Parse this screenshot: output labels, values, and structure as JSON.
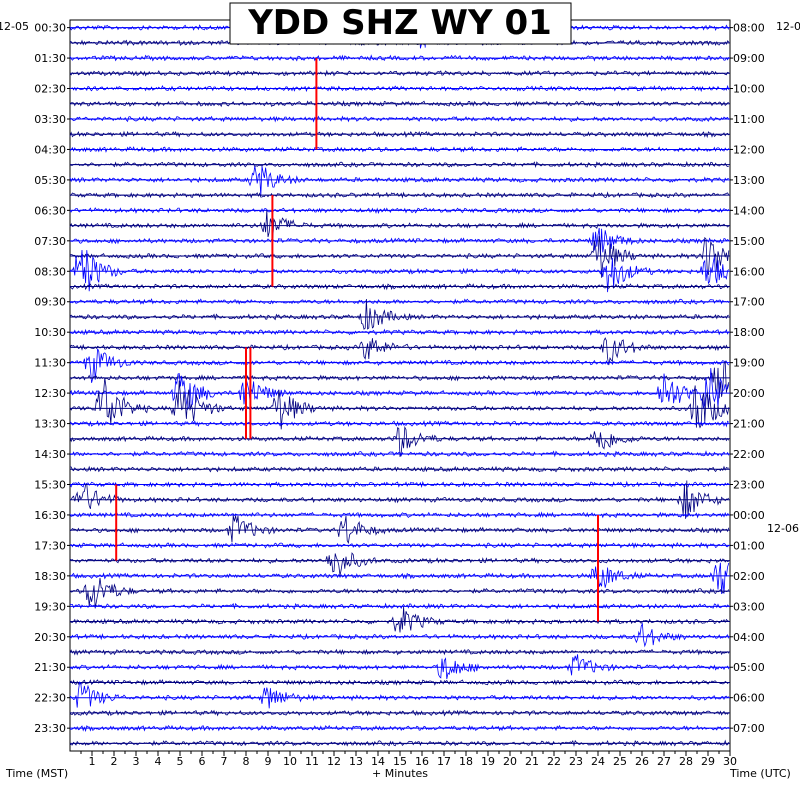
{
  "chart_data": {
    "type": "line",
    "title": "YDD SHZ WY 01",
    "xlabel": "+ Minutes",
    "ylabel_left": "Time (MST)",
    "ylabel_right": "Time (UTC)",
    "date_left": "12-05",
    "date_right_top": "12-0",
    "date_right_mid": "12-06",
    "x_range": [
      0,
      30
    ],
    "x_ticks": [
      "1",
      "2",
      "3",
      "4",
      "5",
      "6",
      "7",
      "8",
      "9",
      "10",
      "11",
      "12",
      "13",
      "14",
      "15",
      "16",
      "17",
      "18",
      "19",
      "20",
      "21",
      "22",
      "23",
      "24",
      "25",
      "26",
      "27",
      "28",
      "29",
      "30"
    ],
    "left_ticks": [
      "00:30",
      "01:30",
      "02:30",
      "03:30",
      "04:30",
      "05:30",
      "06:30",
      "07:30",
      "08:30",
      "09:30",
      "10:30",
      "11:30",
      "12:30",
      "13:30",
      "14:30",
      "15:30",
      "16:30",
      "17:30",
      "18:30",
      "19:30",
      "20:30",
      "21:30",
      "22:30",
      "23:30"
    ],
    "right_ticks": [
      "08:00",
      "09:00",
      "10:00",
      "11:00",
      "12:00",
      "13:00",
      "14:00",
      "15:00",
      "16:00",
      "17:00",
      "18:00",
      "19:00",
      "20:00",
      "21:00",
      "22:00",
      "23:00",
      "00:00",
      "01:00",
      "02:00",
      "03:00",
      "04:00",
      "05:00",
      "06:00",
      "07:00"
    ],
    "trace_count": 48,
    "trace_colors": [
      "#0000ff",
      "#000080"
    ],
    "event_color": "#ff0000",
    "grid": true,
    "events": [
      {
        "trace": 0,
        "minute": 16.0,
        "amp": 1.4
      },
      {
        "trace": 10,
        "minute": 8.5,
        "amp": 1.2
      },
      {
        "trace": 13,
        "minute": 9.0,
        "amp": 1.0
      },
      {
        "trace": 14,
        "minute": 24.0,
        "amp": 1.0
      },
      {
        "trace": 15,
        "minute": 24.0,
        "amp": 1.6
      },
      {
        "trace": 15,
        "minute": 29.0,
        "amp": 1.6
      },
      {
        "trace": 16,
        "minute": 0.5,
        "amp": 2.0
      },
      {
        "trace": 16,
        "minute": 24.5,
        "amp": 1.4
      },
      {
        "trace": 16,
        "minute": 29.0,
        "amp": 1.2
      },
      {
        "trace": 19,
        "minute": 13.5,
        "amp": 1.0
      },
      {
        "trace": 21,
        "minute": 13.5,
        "amp": 0.8
      },
      {
        "trace": 21,
        "minute": 24.5,
        "amp": 1.0
      },
      {
        "trace": 22,
        "minute": 1.0,
        "amp": 1.2
      },
      {
        "trace": 23,
        "minute": 29.5,
        "amp": 1.4
      },
      {
        "trace": 24,
        "minute": 5.0,
        "amp": 1.6
      },
      {
        "trace": 24,
        "minute": 8.0,
        "amp": 1.2
      },
      {
        "trace": 24,
        "minute": 27.0,
        "amp": 1.4
      },
      {
        "trace": 24,
        "minute": 29.0,
        "amp": 1.8
      },
      {
        "trace": 25,
        "minute": 1.5,
        "amp": 2.2
      },
      {
        "trace": 25,
        "minute": 5.0,
        "amp": 2.0
      },
      {
        "trace": 25,
        "minute": 9.5,
        "amp": 1.4
      },
      {
        "trace": 25,
        "minute": 28.5,
        "amp": 2.0
      },
      {
        "trace": 27,
        "minute": 15.0,
        "amp": 1.0
      },
      {
        "trace": 27,
        "minute": 24.0,
        "amp": 1.0
      },
      {
        "trace": 31,
        "minute": 0.5,
        "amp": 1.2
      },
      {
        "trace": 31,
        "minute": 28.0,
        "amp": 1.2
      },
      {
        "trace": 33,
        "minute": 7.5,
        "amp": 1.0
      },
      {
        "trace": 33,
        "minute": 12.5,
        "amp": 1.0
      },
      {
        "trace": 35,
        "minute": 12.0,
        "amp": 1.2
      },
      {
        "trace": 36,
        "minute": 24.0,
        "amp": 1.0
      },
      {
        "trace": 36,
        "minute": 29.5,
        "amp": 1.4
      },
      {
        "trace": 37,
        "minute": 1.0,
        "amp": 1.4
      },
      {
        "trace": 39,
        "minute": 15.0,
        "amp": 1.0
      },
      {
        "trace": 40,
        "minute": 26.0,
        "amp": 0.8
      },
      {
        "trace": 42,
        "minute": 17.0,
        "amp": 0.9
      },
      {
        "trace": 42,
        "minute": 23.0,
        "amp": 0.8
      },
      {
        "trace": 44,
        "minute": 9.0,
        "amp": 0.8
      },
      {
        "trace": 44,
        "minute": 0.5,
        "amp": 1.0
      }
    ],
    "red_marks": [
      {
        "minute": 11.2,
        "trace_from": 2,
        "trace_to": 8
      },
      {
        "minute": 9.2,
        "trace_from": 11,
        "trace_to": 17
      },
      {
        "minute": 8.0,
        "trace_from": 21,
        "trace_to": 27
      },
      {
        "minute": 8.2,
        "trace_from": 21,
        "trace_to": 27
      },
      {
        "minute": 2.1,
        "trace_from": 30,
        "trace_to": 35
      },
      {
        "minute": 24.0,
        "trace_from": 32,
        "trace_to": 39
      }
    ]
  }
}
